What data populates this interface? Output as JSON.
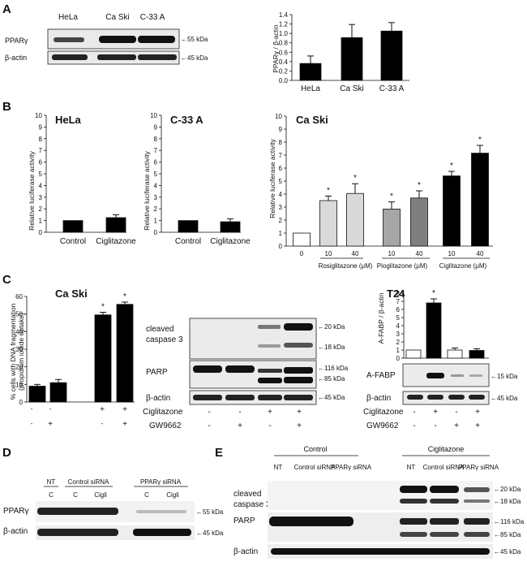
{
  "panels": {
    "A": "A",
    "B": "B",
    "C": "C",
    "D": "D",
    "E": "E"
  },
  "colors": {
    "black": "#000000",
    "white": "#ffffff",
    "light_gray": "#d9d9d9",
    "mid_gray": "#a6a6a6",
    "dark_gray": "#7f7f7f",
    "blot_bg": "#e8e8e8"
  },
  "A": {
    "lane_labels": [
      "HeLa",
      "Ca Ski",
      "C-33 A"
    ],
    "rows": [
      "PPARγ",
      "β-actin"
    ],
    "markers": [
      "55 kDa",
      "45 kDa"
    ]
  },
  "B": {
    "titles": [
      "HeLa",
      "C-33 A",
      "Ca Ski"
    ],
    "ylabel": "Relative luciferase activity",
    "group_labels": [
      "Rosiglitazone (μM)",
      "Pioglitazone (μM)",
      "Ciglitazone (μM)"
    ],
    "dose_labels": [
      "0",
      "10",
      "40",
      "10",
      "40",
      "10",
      "40"
    ]
  },
  "C": {
    "caski_title": "Ca Ski",
    "t24_title": "T24",
    "blot_rows": [
      "cleaved caspase 3",
      "PARP",
      "β-actin"
    ],
    "blot_row1a": "cleaved",
    "blot_row1b": "caspase 3",
    "blot_markers": [
      "20 kDa",
      "18 kDa",
      "116 kDa",
      "85 kDa",
      "45 kDa"
    ],
    "treat_rows": [
      "Ciglitazone",
      "GW9662"
    ],
    "signs_cig": [
      "-",
      "-",
      "+",
      "+"
    ],
    "signs_gw": [
      "-",
      "+",
      "-",
      "+"
    ],
    "t24_rows": [
      "A-FABP",
      "β-actin"
    ],
    "t24_markers": [
      "15 kDa",
      "45 kDa"
    ]
  },
  "D": {
    "header": {
      "nt": "NT",
      "control": "Control siRNA",
      "ppar": "PPARγ siRNA"
    },
    "lane_labels": [
      "C",
      "C",
      "Cigli",
      "C",
      "Cigli"
    ],
    "rows": [
      "PPARγ",
      "β-actin"
    ],
    "markers": [
      "55 kDa",
      "45 kDa"
    ]
  },
  "E": {
    "groups": [
      "Control",
      "Ciglitazone"
    ],
    "lane_labels": [
      "NT",
      "Control siRNA",
      "PPARγ siRNA",
      "NT",
      "Control siRNA",
      "PPARγ siRNA"
    ],
    "rows": [
      "cleaved caspase 3",
      "PARP",
      "β-actin"
    ],
    "row1a": "cleaved",
    "row1b": "caspase 3",
    "markers": [
      "20 kDa",
      "18 kDa",
      "116 kDa",
      "85 kDa",
      "45 kDa"
    ]
  },
  "chart_data": [
    {
      "id": "A-bar",
      "type": "bar",
      "ylabel": "PPARγ / β-actin",
      "categories": [
        "HeLa",
        "Ca Ski",
        "C-33 A"
      ],
      "values": [
        0.36,
        0.91,
        1.05
      ],
      "errors": [
        0.16,
        0.28,
        0.18
      ],
      "ylim": [
        0,
        1.4
      ],
      "yticks": [
        0.0,
        0.2,
        0.4,
        0.6,
        0.8,
        1.0,
        1.2,
        1.4
      ],
      "ytick_labels": [
        "0.0",
        "0.2",
        "0.4",
        "0.6",
        "0.8",
        "1.0",
        "1.2",
        "1.4"
      ],
      "colors": [
        "#000000",
        "#000000",
        "#000000"
      ]
    },
    {
      "id": "B-hela",
      "type": "bar",
      "title": "HeLa",
      "ylabel": "Relative luciferase activity",
      "categories": [
        "Control",
        "Ciglitazone"
      ],
      "values": [
        1.0,
        1.25
      ],
      "errors": [
        0.0,
        0.25
      ],
      "ylim": [
        0,
        10
      ],
      "yticks": [
        0,
        1,
        2,
        3,
        4,
        5,
        6,
        7,
        8,
        9,
        10
      ],
      "colors": [
        "#000000",
        "#000000"
      ]
    },
    {
      "id": "B-c33a",
      "type": "bar",
      "title": "C-33 A",
      "ylabel": "Relative luciferase activity",
      "categories": [
        "Control",
        "Ciglitazone"
      ],
      "values": [
        1.0,
        0.9
      ],
      "errors": [
        0.0,
        0.25
      ],
      "ylim": [
        0,
        10
      ],
      "yticks": [
        0,
        1,
        2,
        3,
        4,
        5,
        6,
        7,
        8,
        9,
        10
      ],
      "colors": [
        "#000000",
        "#000000"
      ]
    },
    {
      "id": "B-caski",
      "type": "bar",
      "title": "Ca Ski",
      "ylabel": "Relative luciferase activity",
      "categories": [
        "0",
        "10",
        "40",
        "10",
        "40",
        "10",
        "40"
      ],
      "values": [
        1.0,
        3.5,
        4.05,
        2.85,
        3.7,
        5.4,
        7.15
      ],
      "errors": [
        0.0,
        0.35,
        0.75,
        0.55,
        0.55,
        0.35,
        0.6
      ],
      "significant": [
        false,
        true,
        true,
        true,
        true,
        true,
        true
      ],
      "ylim": [
        0,
        10
      ],
      "yticks": [
        0,
        1,
        2,
        3,
        4,
        5,
        6,
        7,
        8,
        9,
        10
      ],
      "colors": [
        "#ffffff",
        "#d9d9d9",
        "#d9d9d9",
        "#a6a6a6",
        "#7f7f7f",
        "#000000",
        "#000000"
      ]
    },
    {
      "id": "C-caski",
      "type": "bar",
      "title": "Ca Ski",
      "ylabel": "% cells with DNA fragmentation",
      "ylabel2": "(propidium iodide uptake)",
      "categories": [
        "-/-",
        "-/+",
        "+/-",
        "+/+"
      ],
      "values": [
        9,
        11,
        49.5,
        55.5
      ],
      "errors": [
        1.0,
        1.8,
        1.5,
        1.3
      ],
      "significant": [
        false,
        false,
        true,
        true
      ],
      "ylim": [
        0,
        60
      ],
      "yticks": [
        0,
        10,
        20,
        30,
        40,
        50,
        60
      ],
      "colors": [
        "#000000",
        "#000000",
        "#000000",
        "#000000"
      ]
    },
    {
      "id": "C-t24",
      "type": "bar",
      "title": "T24",
      "ylabel": "A-FABP / β-actin",
      "categories": [
        "-/-",
        "+/-",
        "-/+",
        "+/+"
      ],
      "values": [
        1.0,
        6.8,
        1.0,
        0.95
      ],
      "errors": [
        0.0,
        0.5,
        0.25,
        0.2
      ],
      "significant": [
        false,
        true,
        false,
        false
      ],
      "ylim": [
        0,
        8
      ],
      "yticks": [
        0,
        1,
        2,
        3,
        4,
        5,
        6,
        7,
        8
      ],
      "colors": [
        "#ffffff",
        "#000000",
        "#ffffff",
        "#000000"
      ]
    }
  ]
}
